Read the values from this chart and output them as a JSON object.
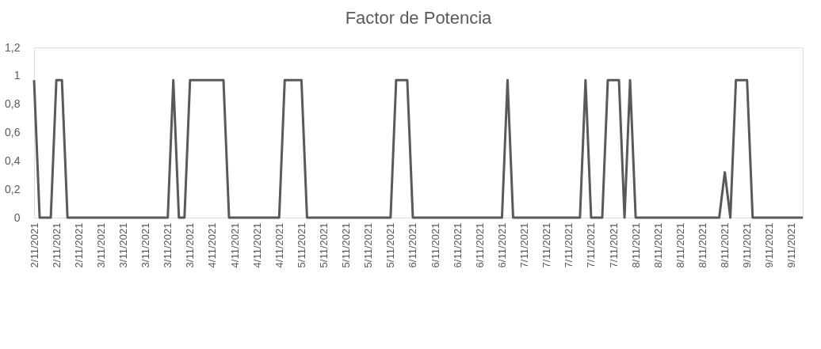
{
  "chart_data": {
    "type": "line",
    "title": "Factor de Potencia",
    "categories": [
      "2/11/2021",
      null,
      null,
      null,
      "2/11/2021",
      null,
      null,
      null,
      "2/11/2021",
      null,
      null,
      null,
      "3/11/2021",
      null,
      null,
      null,
      "3/11/2021",
      null,
      null,
      null,
      "3/11/2021",
      null,
      null,
      null,
      "3/11/2021",
      null,
      null,
      null,
      "3/11/2021",
      null,
      null,
      null,
      "4/11/2021",
      null,
      null,
      null,
      "4/11/2021",
      null,
      null,
      null,
      "4/11/2021",
      null,
      null,
      null,
      "4/11/2021",
      null,
      null,
      null,
      "5/11/2021",
      null,
      null,
      null,
      "5/11/2021",
      null,
      null,
      null,
      "5/11/2021",
      null,
      null,
      null,
      "5/11/2021",
      null,
      null,
      null,
      "5/11/2021",
      null,
      null,
      null,
      "6/11/2021",
      null,
      null,
      null,
      "6/11/2021",
      null,
      null,
      null,
      "6/11/2021",
      null,
      null,
      null,
      "6/11/2021",
      null,
      null,
      null,
      "6/11/2021",
      null,
      null,
      null,
      "7/11/2021",
      null,
      null,
      null,
      "7/11/2021",
      null,
      null,
      null,
      "7/11/2021",
      null,
      null,
      null,
      "7/11/2021",
      null,
      null,
      null,
      "7/11/2021",
      null,
      null,
      null,
      "8/11/2021",
      null,
      null,
      null,
      "8/11/2021",
      null,
      null,
      null,
      "8/11/2021",
      null,
      null,
      null,
      "8/11/2021",
      null,
      null,
      null,
      "8/11/2021",
      null,
      null,
      null,
      "9/11/2021",
      null,
      null,
      null,
      "9/11/2021",
      null,
      null,
      null,
      "9/11/2021",
      null,
      null
    ],
    "series": [
      {
        "color": "#595959",
        "values": [
          0.97,
          0,
          0,
          0,
          0.97,
          0.97,
          0,
          0,
          0,
          0,
          0,
          0,
          0,
          0,
          0,
          0,
          0,
          0,
          0,
          0,
          0,
          0,
          0,
          0,
          0,
          0.97,
          0,
          0,
          0.97,
          0.97,
          0.97,
          0.97,
          0.97,
          0.97,
          0.97,
          0,
          0,
          0,
          0,
          0,
          0,
          0,
          0,
          0,
          0,
          0.97,
          0.97,
          0.97,
          0.97,
          0,
          0,
          0,
          0,
          0,
          0,
          0,
          0,
          0,
          0,
          0,
          0,
          0,
          0,
          0,
          0,
          0.97,
          0.97,
          0.97,
          0,
          0,
          0,
          0,
          0,
          0,
          0,
          0,
          0,
          0,
          0,
          0,
          0,
          0,
          0,
          0,
          0,
          0.97,
          0,
          0,
          0,
          0,
          0,
          0,
          0,
          0,
          0,
          0,
          0,
          0,
          0,
          0.97,
          0,
          0,
          0,
          0.97,
          0.97,
          0.97,
          0,
          0.97,
          0,
          0,
          0,
          0,
          0,
          0,
          0,
          0,
          0,
          0,
          0,
          0,
          0,
          0,
          0,
          0,
          0.32,
          0,
          0.97,
          0.97,
          0.97,
          0,
          0,
          0,
          0,
          0,
          0,
          0,
          0,
          0,
          0
        ]
      }
    ],
    "ylim": [
      0,
      1.2
    ],
    "yticks": [
      0,
      {
        "value": 0.2,
        "label": "0,2"
      },
      {
        "value": 0.4,
        "label": "0,4"
      },
      {
        "value": 0.6,
        "label": "0,6"
      },
      {
        "value": 0.8,
        "label": "0,8"
      },
      1,
      {
        "value": 1.2,
        "label": "1,2"
      }
    ],
    "grid": false
  }
}
